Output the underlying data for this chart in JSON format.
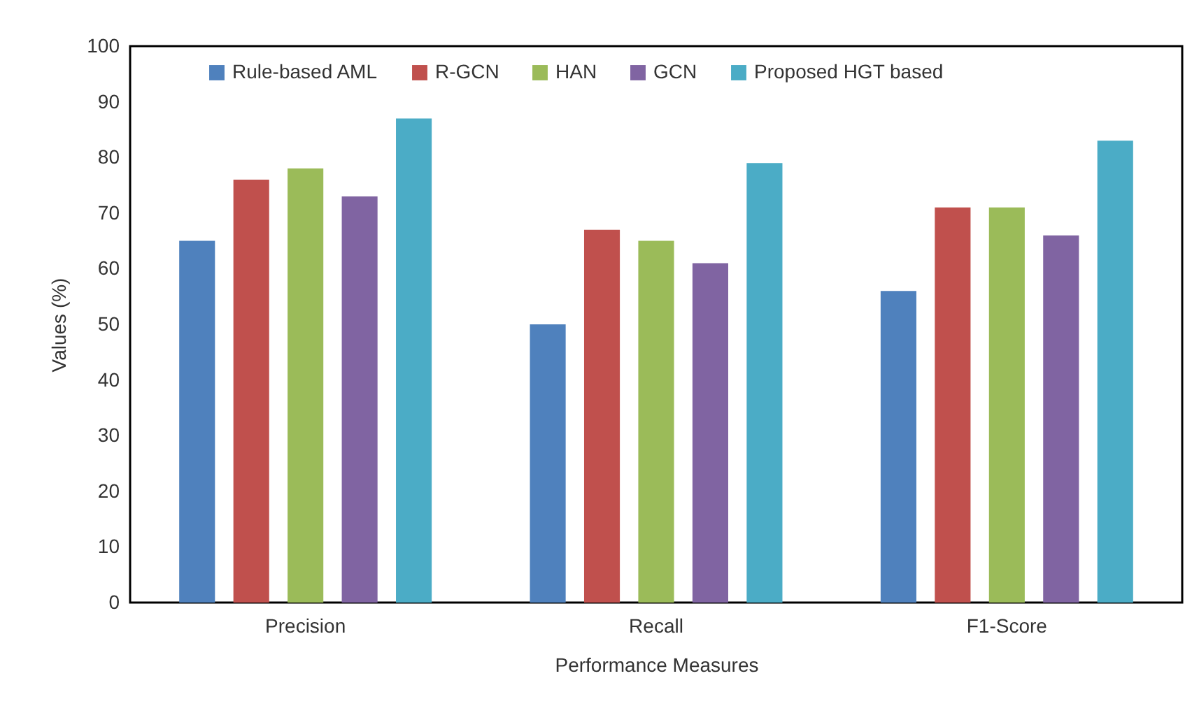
{
  "chart_data": {
    "type": "bar",
    "xlabel": "Performance Measures",
    "ylabel": "Values (%)",
    "categories": [
      "Precision",
      "Recall",
      "F1-Score"
    ],
    "series": [
      {
        "name": "Rule-based AML",
        "color": "#4f81bd",
        "values": [
          65,
          50,
          56
        ]
      },
      {
        "name": "R-GCN",
        "color": "#c0504d",
        "values": [
          76,
          67,
          71
        ]
      },
      {
        "name": "HAN",
        "color": "#9bbb59",
        "values": [
          78,
          65,
          71
        ]
      },
      {
        "name": "GCN",
        "color": "#8064a2",
        "values": [
          73,
          61,
          66
        ]
      },
      {
        "name": "Proposed HGT based",
        "color": "#4bacc6",
        "values": [
          87,
          79,
          83
        ]
      }
    ],
    "ylim": [
      0,
      100
    ],
    "yticks": [
      0,
      10,
      20,
      30,
      40,
      50,
      60,
      70,
      80,
      90,
      100
    ],
    "grid": false,
    "legend": "top"
  }
}
